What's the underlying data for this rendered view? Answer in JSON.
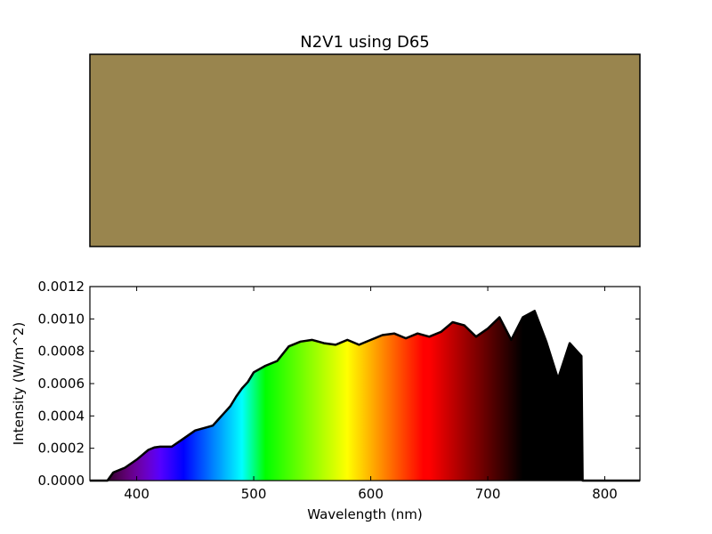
{
  "title": "N2V1 using D65",
  "swatch": {
    "color": "#99854e"
  },
  "chart_data": {
    "type": "area",
    "xlabel": "Wavelength (nm)",
    "ylabel": "Intensity (W/m^2)",
    "xlim": [
      360,
      830
    ],
    "ylim": [
      0.0,
      0.0012
    ],
    "xticks": [
      400,
      500,
      600,
      700,
      800
    ],
    "xtick_labels": [
      "400",
      "500",
      "600",
      "700",
      "800"
    ],
    "yticks": [
      0.0,
      0.0002,
      0.0004,
      0.0006,
      0.0008,
      0.001,
      0.0012
    ],
    "ytick_labels": [
      "0.0000",
      "0.0002",
      "0.0004",
      "0.0006",
      "0.0008",
      "0.0010",
      "0.0012"
    ],
    "grid": false,
    "fill": "wavelength-colored spectrum",
    "series": [
      {
        "x": [
          360,
          375,
          380,
          390,
          400,
          405,
          410,
          415,
          420,
          430,
          440,
          450,
          460,
          465,
          470,
          475,
          480,
          485,
          490,
          495,
          500,
          510,
          520,
          530,
          540,
          550,
          560,
          570,
          580,
          590,
          600,
          610,
          620,
          630,
          640,
          650,
          660,
          670,
          680,
          690,
          700,
          710,
          720,
          730,
          740,
          750,
          760,
          770,
          780,
          781,
          830
        ],
        "y": [
          0.0,
          0.0,
          5e-05,
          8e-05,
          0.00013,
          0.00016,
          0.00019,
          0.000205,
          0.00021,
          0.00021,
          0.00026,
          0.00031,
          0.00033,
          0.00034,
          0.00038,
          0.00042,
          0.00046,
          0.00052,
          0.00057,
          0.00061,
          0.00067,
          0.00071,
          0.00074,
          0.00083,
          0.00086,
          0.00087,
          0.00085,
          0.00084,
          0.00087,
          0.00084,
          0.00087,
          0.0009,
          0.00091,
          0.00088,
          0.00091,
          0.00089,
          0.00092,
          0.00098,
          0.00096,
          0.00089,
          0.00094,
          0.00101,
          0.00087,
          0.00101,
          0.00105,
          0.00086,
          0.00063,
          0.00085,
          0.00077,
          0.0,
          0.0
        ]
      }
    ]
  }
}
